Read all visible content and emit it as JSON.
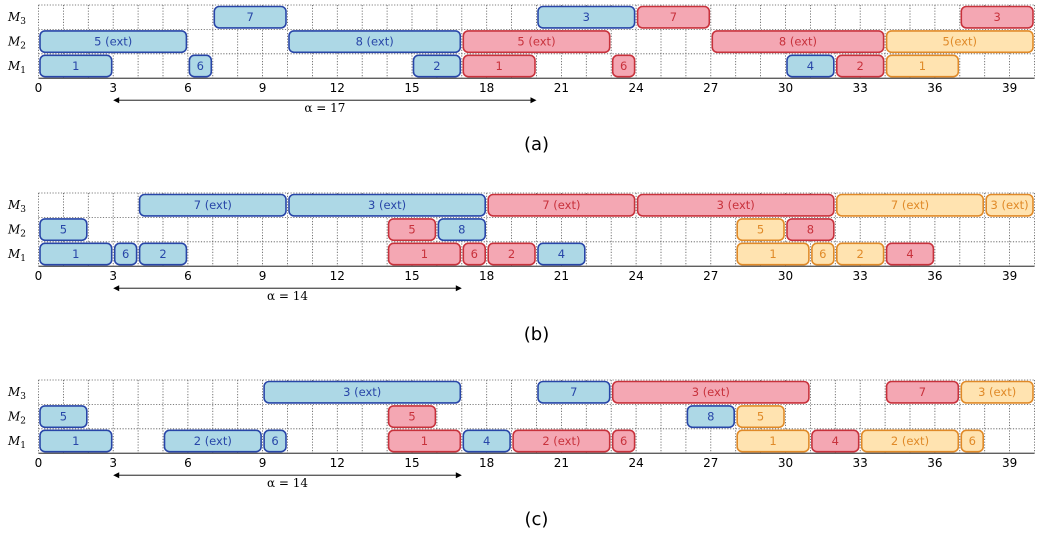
{
  "machines": [
    "M",
    "M",
    "M"
  ],
  "machine_subscripts": [
    "1",
    "2",
    "3"
  ],
  "ticks": [
    "0",
    "3",
    "6",
    "9",
    "12",
    "15",
    "18",
    "21",
    "24",
    "27",
    "30",
    "33",
    "36",
    "39"
  ],
  "time_max": 40,
  "colors": {
    "blue": {
      "fill": "#add8e6",
      "stroke": "#2846a8",
      "text": "#2846a8"
    },
    "red": {
      "fill": "#f4a7b3",
      "stroke": "#c8323c",
      "text": "#c8323c"
    },
    "orange": {
      "fill": "#ffe3b0",
      "stroke": "#e08a28",
      "text": "#e08a28"
    }
  },
  "panels": [
    {
      "caption": "(a)",
      "alpha_label": "α = 17",
      "alpha_range": [
        3,
        20
      ],
      "jobs": [
        {
          "m": 3,
          "start": 7,
          "end": 10,
          "label": "7",
          "color": "blue"
        },
        {
          "m": 3,
          "start": 20,
          "end": 24,
          "label": "3",
          "color": "blue"
        },
        {
          "m": 3,
          "start": 24,
          "end": 27,
          "label": "7",
          "color": "red"
        },
        {
          "m": 3,
          "start": 37,
          "end": 40,
          "label": "3",
          "color": "red"
        },
        {
          "m": 2,
          "start": 0,
          "end": 6,
          "label": "5 (ext)",
          "color": "blue"
        },
        {
          "m": 2,
          "start": 10,
          "end": 17,
          "label": "8 (ext)",
          "color": "blue"
        },
        {
          "m": 2,
          "start": 17,
          "end": 23,
          "label": "5 (ext)",
          "color": "red"
        },
        {
          "m": 2,
          "start": 27,
          "end": 34,
          "label": "8 (ext)",
          "color": "red"
        },
        {
          "m": 2,
          "start": 34,
          "end": 40,
          "label": "5(ext)",
          "color": "orange"
        },
        {
          "m": 1,
          "start": 0,
          "end": 3,
          "label": "1",
          "color": "blue"
        },
        {
          "m": 1,
          "start": 6,
          "end": 7,
          "label": "6",
          "color": "blue"
        },
        {
          "m": 1,
          "start": 15,
          "end": 17,
          "label": "2",
          "color": "blue"
        },
        {
          "m": 1,
          "start": 17,
          "end": 20,
          "label": "1",
          "color": "red"
        },
        {
          "m": 1,
          "start": 23,
          "end": 24,
          "label": "6",
          "color": "red"
        },
        {
          "m": 1,
          "start": 30,
          "end": 32,
          "label": "4",
          "color": "blue"
        },
        {
          "m": 1,
          "start": 32,
          "end": 34,
          "label": "2",
          "color": "red"
        },
        {
          "m": 1,
          "start": 34,
          "end": 37,
          "label": "1",
          "color": "orange"
        }
      ]
    },
    {
      "caption": "(b)",
      "alpha_label": "α = 14",
      "alpha_range": [
        3,
        17
      ],
      "jobs": [
        {
          "m": 3,
          "start": 4,
          "end": 10,
          "label": "7 (ext)",
          "color": "blue"
        },
        {
          "m": 3,
          "start": 10,
          "end": 18,
          "label": "3 (ext)",
          "color": "blue"
        },
        {
          "m": 3,
          "start": 18,
          "end": 24,
          "label": "7 (ext)",
          "color": "red"
        },
        {
          "m": 3,
          "start": 24,
          "end": 32,
          "label": "3 (ext)",
          "color": "red"
        },
        {
          "m": 3,
          "start": 32,
          "end": 38,
          "label": "7 (ext)",
          "color": "orange"
        },
        {
          "m": 3,
          "start": 38,
          "end": 40,
          "label": "3 (ext)",
          "color": "orange"
        },
        {
          "m": 2,
          "start": 0,
          "end": 2,
          "label": "5",
          "color": "blue"
        },
        {
          "m": 2,
          "start": 14,
          "end": 16,
          "label": "5",
          "color": "red"
        },
        {
          "m": 2,
          "start": 16,
          "end": 18,
          "label": "8",
          "color": "blue"
        },
        {
          "m": 2,
          "start": 28,
          "end": 30,
          "label": "5",
          "color": "orange"
        },
        {
          "m": 2,
          "start": 30,
          "end": 32,
          "label": "8",
          "color": "red"
        },
        {
          "m": 1,
          "start": 0,
          "end": 3,
          "label": "1",
          "color": "blue"
        },
        {
          "m": 1,
          "start": 3,
          "end": 4,
          "label": "6",
          "color": "blue"
        },
        {
          "m": 1,
          "start": 4,
          "end": 6,
          "label": "2",
          "color": "blue"
        },
        {
          "m": 1,
          "start": 14,
          "end": 17,
          "label": "1",
          "color": "red"
        },
        {
          "m": 1,
          "start": 17,
          "end": 18,
          "label": "6",
          "color": "red"
        },
        {
          "m": 1,
          "start": 18,
          "end": 20,
          "label": "2",
          "color": "red"
        },
        {
          "m": 1,
          "start": 20,
          "end": 22,
          "label": "4",
          "color": "blue"
        },
        {
          "m": 1,
          "start": 28,
          "end": 31,
          "label": "1",
          "color": "orange"
        },
        {
          "m": 1,
          "start": 31,
          "end": 32,
          "label": "6",
          "color": "orange"
        },
        {
          "m": 1,
          "start": 32,
          "end": 34,
          "label": "2",
          "color": "orange"
        },
        {
          "m": 1,
          "start": 34,
          "end": 36,
          "label": "4",
          "color": "red"
        }
      ]
    },
    {
      "caption": "(c)",
      "alpha_label": "α = 14",
      "alpha_range": [
        3,
        17
      ],
      "jobs": [
        {
          "m": 3,
          "start": 9,
          "end": 17,
          "label": "3 (ext)",
          "color": "blue"
        },
        {
          "m": 3,
          "start": 20,
          "end": 23,
          "label": "7",
          "color": "blue"
        },
        {
          "m": 3,
          "start": 23,
          "end": 31,
          "label": "3 (ext)",
          "color": "red"
        },
        {
          "m": 3,
          "start": 34,
          "end": 37,
          "label": "7",
          "color": "red"
        },
        {
          "m": 3,
          "start": 37,
          "end": 40,
          "label": "3 (ext)",
          "color": "orange"
        },
        {
          "m": 2,
          "start": 0,
          "end": 2,
          "label": "5",
          "color": "blue"
        },
        {
          "m": 2,
          "start": 14,
          "end": 16,
          "label": "5",
          "color": "red"
        },
        {
          "m": 2,
          "start": 26,
          "end": 28,
          "label": "8",
          "color": "blue"
        },
        {
          "m": 2,
          "start": 28,
          "end": 30,
          "label": "5",
          "color": "orange"
        },
        {
          "m": 1,
          "start": 0,
          "end": 3,
          "label": "1",
          "color": "blue"
        },
        {
          "m": 1,
          "start": 5,
          "end": 9,
          "label": "2 (ext)",
          "color": "blue"
        },
        {
          "m": 1,
          "start": 9,
          "end": 10,
          "label": "6",
          "color": "blue"
        },
        {
          "m": 1,
          "start": 14,
          "end": 17,
          "label": "1",
          "color": "red"
        },
        {
          "m": 1,
          "start": 17,
          "end": 19,
          "label": "4",
          "color": "blue"
        },
        {
          "m": 1,
          "start": 19,
          "end": 23,
          "label": "2 (ext)",
          "color": "red"
        },
        {
          "m": 1,
          "start": 23,
          "end": 24,
          "label": "6",
          "color": "red"
        },
        {
          "m": 1,
          "start": 28,
          "end": 31,
          "label": "1",
          "color": "orange"
        },
        {
          "m": 1,
          "start": 31,
          "end": 33,
          "label": "4",
          "color": "red"
        },
        {
          "m": 1,
          "start": 33,
          "end": 37,
          "label": "2 (ext)",
          "color": "orange"
        },
        {
          "m": 1,
          "start": 37,
          "end": 38,
          "label": "6",
          "color": "orange"
        }
      ]
    }
  ]
}
